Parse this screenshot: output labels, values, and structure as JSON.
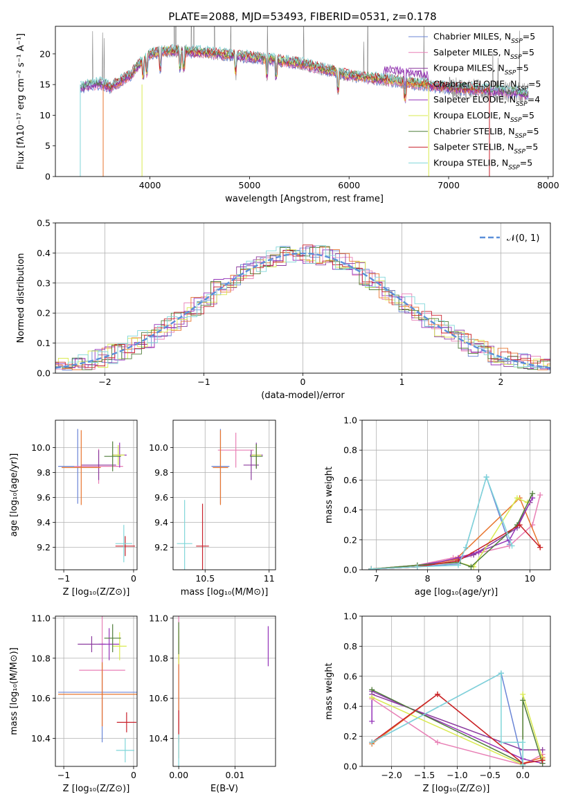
{
  "figure": {
    "title": "PLATE=2088, MJD=53493, FIBERID=0531, z=0.178"
  },
  "chart_data": [
    {
      "id": "spectrum",
      "type": "line",
      "title": "PLATE=2088, MJD=53493, FIBERID=0531, z=0.178",
      "xlabel": "wavelength [Angstrom, rest frame]",
      "ylabel": "Flux [fλ10⁻¹⁷ erg cm⁻² s⁻¹ A⁻¹]",
      "xlim": [
        3050,
        8050
      ],
      "ylim": [
        0,
        24.5
      ],
      "xticks": [
        4000,
        5000,
        6000,
        7000,
        8000
      ],
      "yticks": [
        0,
        5,
        10,
        15,
        20
      ],
      "grid": false,
      "legend_position": "top-right",
      "continuum": {
        "x": [
          3300,
          3400,
          3500,
          3600,
          3700,
          3800,
          3900,
          4000,
          4100,
          4200,
          4300,
          4500,
          4700,
          5000,
          5500,
          6000,
          6500,
          7000,
          7500,
          7800
        ],
        "y": [
          14.5,
          15.0,
          15.2,
          14.6,
          15.5,
          16.5,
          18.5,
          20.0,
          20.3,
          20.5,
          20.5,
          20.3,
          20.0,
          19.5,
          18.5,
          16.5,
          15.5,
          14.5,
          14.0,
          13.5
        ]
      },
      "series": [
        {
          "name": "Chabrier MILES, N_SSP=5",
          "color": "#6a85d6"
        },
        {
          "name": "Salpeter MILES, N_SSP=5",
          "color": "#e87fb5"
        },
        {
          "name": "Kroupa MILES, N_SSP=5",
          "color": "#8b3a9e"
        },
        {
          "name": "Chabrier ELODIE, N_SSP=5",
          "color": "#e8752e"
        },
        {
          "name": "Salpeter ELODIE, N_SSP=4",
          "color": "#9432b8"
        },
        {
          "name": "Kroupa ELODIE, N_SSP=5",
          "color": "#d9ea4f"
        },
        {
          "name": "Chabrier STELIB, N_SSP=5",
          "color": "#4f7d3a"
        },
        {
          "name": "Salpeter STELIB, N_SSP=5",
          "color": "#c8202a"
        },
        {
          "name": "Kroupa STELIB, N_SSP=5",
          "color": "#7fd6d9"
        }
      ]
    },
    {
      "id": "residuals",
      "type": "line",
      "xlabel": "(data-model)/error",
      "ylabel": "Normed distribution",
      "xlim": [
        -2.5,
        2.5
      ],
      "ylim": [
        0,
        0.5
      ],
      "xticks": [
        -2,
        -1,
        0,
        1,
        2
      ],
      "yticks": [
        0.0,
        0.1,
        0.2,
        0.3,
        0.4,
        0.5
      ],
      "grid": true,
      "legend_position": "top-right",
      "legend": "𝒩(0, 1)",
      "gaussian_color": "#5b8fd9"
    },
    {
      "id": "age-vs-z",
      "type": "scatter",
      "xlabel": "Z [log₁₀(Z/Z⊙)]",
      "ylabel": "age  [log₁₀(age/yr)]",
      "xlim": [
        -1.12,
        0.05
      ],
      "ylim": [
        9.02,
        10.22
      ],
      "xticks": [
        -1,
        0
      ],
      "yticks": [
        9.2,
        9.4,
        9.6,
        9.8,
        10.0
      ],
      "grid": true,
      "points": [
        {
          "x": -0.8,
          "y": 9.85,
          "xerr": 0.28,
          "yerr": 0.3,
          "color": "#6a85d6"
        },
        {
          "x": -0.5,
          "y": 9.85,
          "xerr": 0.35,
          "yerr": 0.14,
          "color": "#e87fb5"
        },
        {
          "x": -0.5,
          "y": 9.86,
          "xerr": 0.25,
          "yerr": 0.12,
          "color": "#8b3a9e"
        },
        {
          "x": -0.75,
          "y": 9.84,
          "xerr": 0.28,
          "yerr": 0.3,
          "color": "#e8752e"
        },
        {
          "x": -0.2,
          "y": 9.94,
          "xerr": 0.1,
          "yerr": 0.1,
          "color": "#9432b8"
        },
        {
          "x": -0.22,
          "y": 9.94,
          "xerr": 0.09,
          "yerr": 0.08,
          "color": "#d9ea4f"
        },
        {
          "x": -0.3,
          "y": 9.93,
          "xerr": 0.12,
          "yerr": 0.12,
          "color": "#4f7d3a"
        },
        {
          "x": -0.12,
          "y": 9.21,
          "xerr": 0.14,
          "yerr": 0.08,
          "color": "#c8202a"
        },
        {
          "x": -0.14,
          "y": 9.23,
          "xerr": 0.12,
          "yerr": 0.15,
          "color": "#7fd6d9"
        }
      ]
    },
    {
      "id": "age-vs-mass",
      "type": "scatter",
      "xlabel": "mass [log₁₀(M/M⊙)]",
      "ylabel": "",
      "xlim": [
        10.25,
        11.05
      ],
      "ylim": [
        9.02,
        10.22
      ],
      "xticks": [
        10.5,
        11.0
      ],
      "yticks": [
        9.2,
        9.4,
        9.6,
        9.8,
        10.0
      ],
      "grid": true,
      "points": [
        {
          "x": 10.62,
          "y": 9.85,
          "xerr": 0.07,
          "yerr": 0.3,
          "color": "#6a85d6"
        },
        {
          "x": 10.74,
          "y": 9.98,
          "xerr": 0.14,
          "yerr": 0.14,
          "color": "#e87fb5"
        },
        {
          "x": 10.86,
          "y": 9.86,
          "xerr": 0.06,
          "yerr": 0.12,
          "color": "#8b3a9e"
        },
        {
          "x": 10.62,
          "y": 9.84,
          "xerr": 0.06,
          "yerr": 0.3,
          "color": "#e8752e"
        },
        {
          "x": 10.9,
          "y": 9.94,
          "xerr": 0.05,
          "yerr": 0.1,
          "color": "#9432b8"
        },
        {
          "x": 10.9,
          "y": 9.94,
          "xerr": 0.04,
          "yerr": 0.08,
          "color": "#d9ea4f"
        },
        {
          "x": 10.9,
          "y": 9.93,
          "xerr": 0.05,
          "yerr": 0.1,
          "color": "#4f7d3a"
        },
        {
          "x": 10.48,
          "y": 9.21,
          "xerr": 0.05,
          "yerr": 0.34,
          "color": "#c8202a"
        },
        {
          "x": 10.34,
          "y": 9.23,
          "xerr": 0.06,
          "yerr": 0.35,
          "color": "#7fd6d9"
        }
      ]
    },
    {
      "id": "mass-weight-vs-age",
      "type": "line",
      "xlabel": "age  [log₁₀(age/yr)]",
      "ylabel": "mass weight",
      "xlim": [
        6.72,
        10.4
      ],
      "ylim": [
        0,
        1
      ],
      "xticks": [
        7,
        8,
        9,
        10
      ],
      "yticks": [
        0.0,
        0.2,
        0.4,
        0.6,
        0.8,
        1.0
      ],
      "grid": true,
      "series": [
        {
          "color": "#6a85d6",
          "x": [
            6.9,
            7.8,
            8.6,
            8.75,
            9.15,
            9.6
          ],
          "y": [
            0.005,
            0.02,
            0.04,
            0.15,
            0.62,
            0.17
          ]
        },
        {
          "color": "#e87fb5",
          "x": [
            6.9,
            7.8,
            8.5,
            8.85,
            9.6,
            10.05,
            10.2
          ],
          "y": [
            0.005,
            0.03,
            0.08,
            0.1,
            0.16,
            0.3,
            0.5
          ]
        },
        {
          "color": "#8b3a9e",
          "x": [
            6.9,
            7.8,
            8.6,
            8.9,
            9.75,
            10.0
          ],
          "y": [
            0.005,
            0.03,
            0.07,
            0.1,
            0.28,
            0.45
          ]
        },
        {
          "color": "#e8752e",
          "x": [
            6.9,
            7.8,
            8.55,
            9.8,
            10.2
          ],
          "y": [
            0.005,
            0.02,
            0.07,
            0.48,
            0.15
          ]
        },
        {
          "color": "#9432b8",
          "x": [
            6.9,
            7.8,
            8.6,
            9.0,
            9.6,
            10.05
          ],
          "y": [
            0.005,
            0.02,
            0.08,
            0.12,
            0.2,
            0.48
          ]
        },
        {
          "color": "#d9ea4f",
          "x": [
            6.9,
            7.8,
            8.6,
            8.9,
            9.75,
            9.95
          ],
          "y": [
            0.005,
            0.03,
            0.05,
            0.02,
            0.48,
            0.45
          ]
        },
        {
          "color": "#4f7d3a",
          "x": [
            6.9,
            7.8,
            8.6,
            8.85,
            9.75,
            10.05
          ],
          "y": [
            0.005,
            0.03,
            0.05,
            0.02,
            0.3,
            0.51
          ]
        },
        {
          "color": "#c8202a",
          "x": [
            6.9,
            7.8,
            8.6,
            9.8,
            10.2
          ],
          "y": [
            0.005,
            0.02,
            0.06,
            0.3,
            0.15
          ]
        },
        {
          "color": "#7fd6d9",
          "x": [
            6.9,
            7.8,
            8.6,
            8.75,
            9.15,
            9.65
          ],
          "y": [
            0.005,
            0.02,
            0.03,
            0.15,
            0.62,
            0.16
          ]
        }
      ]
    },
    {
      "id": "mass-vs-z",
      "type": "scatter",
      "xlabel": "Z [log₁₀(Z/Z⊙)]",
      "ylabel": "mass [log₁₀(M/M⊙)]",
      "xlim": [
        -1.12,
        0.05
      ],
      "ylim": [
        10.26,
        11.01
      ],
      "xticks": [
        -1,
        0
      ],
      "yticks": [
        10.4,
        10.6,
        10.8,
        11.0
      ],
      "grid": true,
      "points": [
        {
          "x": -0.45,
          "y": 10.63,
          "xerr": 0.63,
          "yerr": 0.25,
          "color": "#6a85d6"
        },
        {
          "x": -0.45,
          "y": 10.74,
          "xerr": 0.33,
          "yerr": 0.28,
          "color": "#e87fb5"
        },
        {
          "x": -0.6,
          "y": 10.87,
          "xerr": 0.2,
          "yerr": 0.04,
          "color": "#8b3a9e"
        },
        {
          "x": -0.45,
          "y": 10.62,
          "xerr": 0.63,
          "yerr": 0.16,
          "color": "#e8752e"
        },
        {
          "x": -0.35,
          "y": 10.87,
          "xerr": 0.15,
          "yerr": 0.08,
          "color": "#9432b8"
        },
        {
          "x": -0.2,
          "y": 10.86,
          "xerr": 0.1,
          "yerr": 0.07,
          "color": "#d9ea4f"
        },
        {
          "x": -0.3,
          "y": 10.9,
          "xerr": 0.12,
          "yerr": 0.07,
          "color": "#4f7d3a"
        },
        {
          "x": -0.1,
          "y": 10.48,
          "xerr": 0.14,
          "yerr": 0.05,
          "color": "#c8202a"
        },
        {
          "x": -0.12,
          "y": 10.34,
          "xerr": 0.13,
          "yerr": 0.06,
          "color": "#7fd6d9"
        }
      ]
    },
    {
      "id": "mass-vs-ebv",
      "type": "scatter",
      "xlabel": "E(B-V)",
      "ylabel": "",
      "xlim": [
        -0.001,
        0.0172
      ],
      "ylim": [
        10.26,
        11.01
      ],
      "xticks": [
        0.0,
        0.01
      ],
      "xticklabels": [
        "0.00",
        "0.01"
      ],
      "yticks": [
        10.4,
        10.6,
        10.8,
        11.0
      ],
      "grid": true,
      "points": [
        {
          "x": 0.0,
          "y": 10.63,
          "yerr": 0.25,
          "color": "#6a85d6"
        },
        {
          "x": 0.0,
          "y": 10.74,
          "yerr": 0.28,
          "color": "#e87fb5"
        },
        {
          "x": 0.0,
          "y": 10.87,
          "yerr": 0.04,
          "color": "#8b3a9e"
        },
        {
          "x": 0.0,
          "y": 10.62,
          "yerr": 0.32,
          "color": "#e8752e"
        },
        {
          "x": 0.0159,
          "y": 10.86,
          "yerr": 0.1,
          "color": "#9432b8"
        },
        {
          "x": 0.0,
          "y": 10.86,
          "yerr": 0.09,
          "color": "#d9ea4f"
        },
        {
          "x": 0.0,
          "y": 10.9,
          "yerr": 0.08,
          "color": "#4f7d3a"
        },
        {
          "x": 0.0,
          "y": 10.48,
          "yerr": 0.06,
          "color": "#c8202a"
        },
        {
          "x": 0.0,
          "y": 10.34,
          "yerr": 0.08,
          "color": "#7fd6d9"
        }
      ]
    },
    {
      "id": "mass-weight-vs-z",
      "type": "line",
      "xlabel": "Z [log₁₀(Z/Z⊙)]",
      "ylabel": "mass weight",
      "xlim": [
        -2.45,
        0.42
      ],
      "ylim": [
        0,
        1
      ],
      "xticks": [
        -2.0,
        -1.5,
        -1.0,
        -0.5,
        0.0
      ],
      "xticklabels": [
        "−2.0",
        "−1.5",
        "−1.0",
        "−0.5",
        "0.0"
      ],
      "yticks": [
        0.0,
        0.2,
        0.4,
        0.6,
        0.8,
        1.0
      ],
      "grid": true,
      "series": [
        {
          "color": "#6a85d6",
          "x": [
            -2.3,
            -0.33,
            0.0
          ],
          "y": [
            0.16,
            0.62,
            0.02
          ]
        },
        {
          "color": "#e87fb5",
          "x": [
            -2.3,
            -1.3,
            0.0,
            0.3
          ],
          "y": [
            0.45,
            0.16,
            0.01,
            0.08
          ]
        },
        {
          "color": "#8b3a9e",
          "x": [
            -2.3,
            0.0,
            0.3
          ],
          "y": [
            0.48,
            0.11,
            0.11
          ]
        },
        {
          "color": "#e8752e",
          "x": [
            -2.3,
            -1.3,
            0.0,
            0.3
          ],
          "y": [
            0.15,
            0.48,
            0.02,
            0.06
          ]
        },
        {
          "color": "#9432b8",
          "x": [
            -2.3,
            -2.3,
            0.0,
            0.3
          ],
          "y": [
            0.3,
            0.5,
            0.05,
            0.02
          ]
        },
        {
          "color": "#d9ea4f",
          "x": [
            -2.3,
            0.0,
            0.0,
            0.3
          ],
          "y": [
            0.46,
            0.01,
            0.48,
            0.05
          ]
        },
        {
          "color": "#4f7d3a",
          "x": [
            -2.3,
            0.0,
            0.0,
            0.3
          ],
          "y": [
            0.51,
            0.02,
            0.44,
            0.02
          ]
        },
        {
          "color": "#c8202a",
          "x": [
            -2.3,
            -1.3,
            0.0,
            0.3
          ],
          "y": [
            0.16,
            0.48,
            0.02,
            0.04
          ]
        },
        {
          "color": "#7fd6d9",
          "x": [
            -2.3,
            -0.33,
            -0.33,
            0.0,
            0.0
          ],
          "y": [
            0.16,
            0.62,
            0.16,
            0.16,
            0.01
          ]
        }
      ]
    }
  ]
}
